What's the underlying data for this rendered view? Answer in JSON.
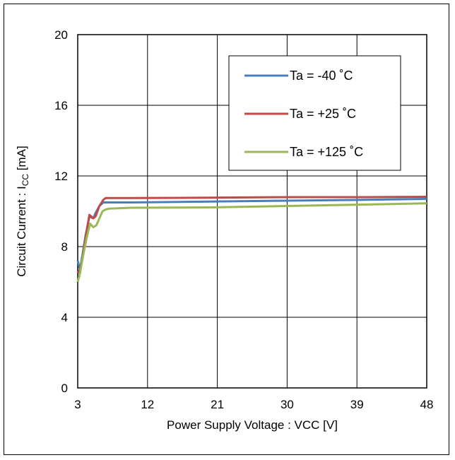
{
  "chart_data": {
    "type": "line",
    "title": "",
    "xlabel": "Power Supply Voltage : VCC [V]",
    "ylabel": {
      "main": "Circuit Current : I",
      "subscript": "CC",
      "unit": " [mA]"
    },
    "xlim": [
      3,
      48
    ],
    "ylim": [
      0,
      20
    ],
    "xticks": [
      3,
      12,
      21,
      30,
      39,
      48
    ],
    "yticks": [
      0,
      4,
      8,
      12,
      16,
      20
    ],
    "grid": true,
    "legend_position": "top-right",
    "series": [
      {
        "name": "Ta = -40 ˚C",
        "color": "#4a7ebb",
        "x": [
          3,
          3.3,
          3.6,
          4.0,
          4.5,
          5.0,
          5.3,
          5.8,
          6.3,
          6.6,
          7.0,
          10,
          20,
          30,
          40,
          48
        ],
        "y": [
          7.2,
          6.7,
          7.5,
          8.6,
          9.7,
          9.6,
          9.9,
          10.3,
          10.5,
          10.5,
          10.5,
          10.5,
          10.55,
          10.6,
          10.65,
          10.7
        ]
      },
      {
        "name": "Ta = +25 ˚C",
        "color": "#be4b48",
        "x": [
          3,
          3.3,
          3.6,
          4.0,
          4.5,
          5.0,
          5.3,
          5.8,
          6.3,
          6.6,
          7.0,
          10,
          20,
          30,
          40,
          48
        ],
        "y": [
          6.5,
          6.7,
          7.3,
          8.5,
          9.8,
          9.6,
          9.7,
          10.3,
          10.65,
          10.75,
          10.75,
          10.75,
          10.77,
          10.8,
          10.8,
          10.82
        ]
      },
      {
        "name": "Ta = +125 ˚C",
        "color": "#98b954",
        "x": [
          3,
          3.3,
          3.7,
          4.2,
          4.6,
          5.0,
          5.4,
          5.8,
          6.2,
          6.6,
          7.0,
          10,
          20,
          30,
          40,
          48
        ],
        "y": [
          6.0,
          6.5,
          7.5,
          8.6,
          9.3,
          9.1,
          9.2,
          9.6,
          10.0,
          10.1,
          10.15,
          10.2,
          10.22,
          10.3,
          10.38,
          10.45
        ]
      }
    ]
  }
}
